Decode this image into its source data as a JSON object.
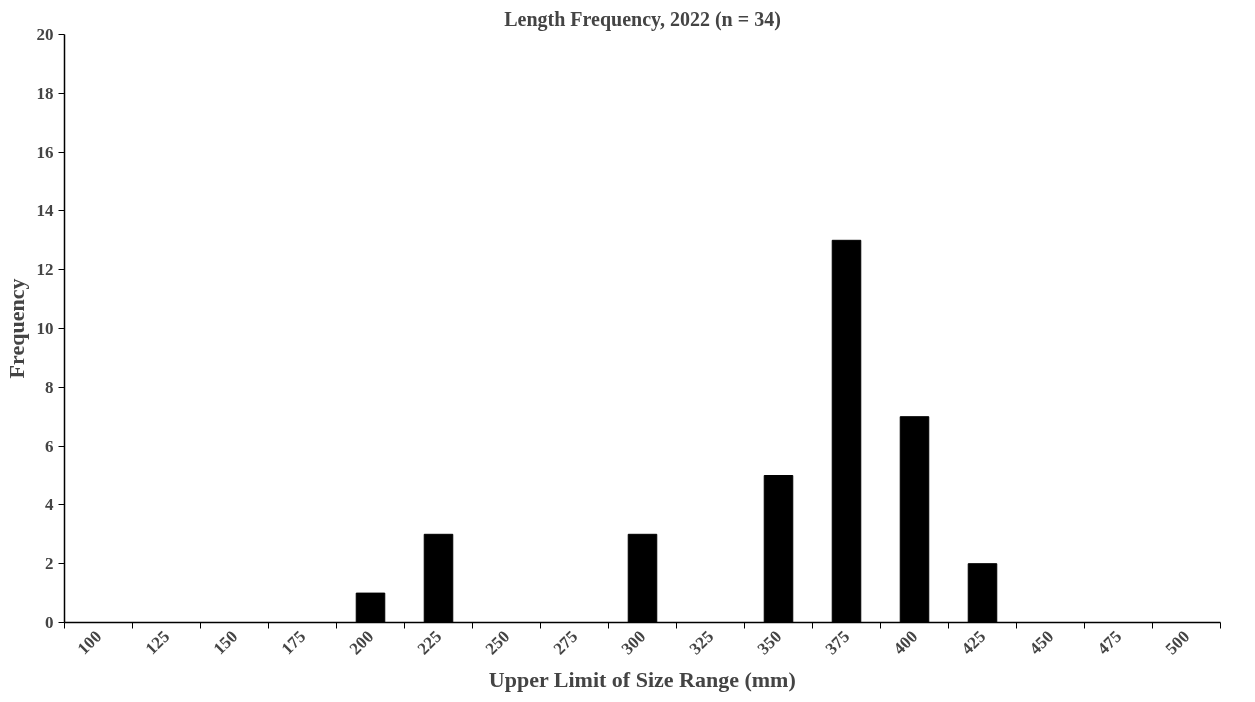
{
  "chart_data": {
    "type": "bar",
    "title": "Length Frequency, 2022 (n = 34)",
    "xlabel": "Upper Limit of Size Range (mm)",
    "ylabel": "Frequency",
    "categories": [
      "100",
      "125",
      "150",
      "175",
      "200",
      "225",
      "250",
      "275",
      "300",
      "325",
      "350",
      "375",
      "400",
      "425",
      "450",
      "475",
      "500"
    ],
    "values": [
      0,
      0,
      0,
      0,
      1,
      3,
      0,
      0,
      3,
      0,
      5,
      13,
      7,
      2,
      0,
      0,
      0
    ],
    "color": "#000000",
    "ylim": [
      0,
      20
    ],
    "yticks": [
      0,
      2,
      4,
      6,
      8,
      10,
      12,
      14,
      16,
      18,
      20
    ],
    "grid": false
  }
}
